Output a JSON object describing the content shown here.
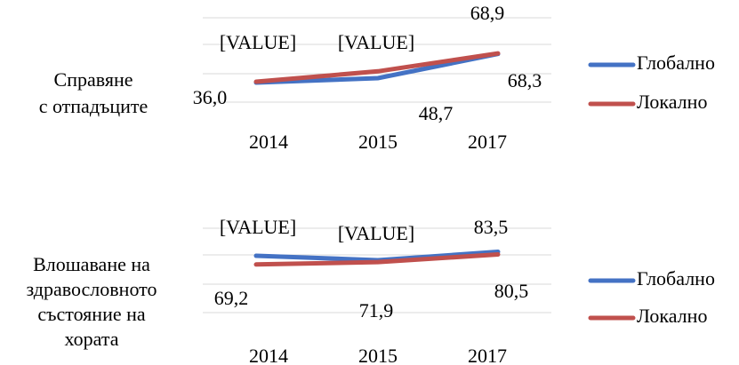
{
  "chart_data": [
    {
      "type": "line",
      "label": [
        "Справяне",
        "с отпадъците"
      ],
      "categories": [
        "2014",
        "2015",
        "2017"
      ],
      "series": [
        {
          "name": "Глобално",
          "color": "#4472c4",
          "values": [
            36.0,
            41,
            68.3
          ],
          "value_labels": [
            "36,0",
            "[VALUE]",
            "68,3"
          ]
        },
        {
          "name": "Локално",
          "color": "#c0504d",
          "values": [
            37,
            48.7,
            68.9
          ],
          "value_labels": [
            "[VALUE]",
            "48,7",
            "68,9"
          ]
        }
      ],
      "ylim": [
        30,
        80
      ]
    },
    {
      "type": "line",
      "label": [
        "Влошаване на",
        "здравословното",
        "състояние на",
        "хората"
      ],
      "categories": [
        "2014",
        "2015",
        "2017"
      ],
      "series": [
        {
          "name": "Глобално",
          "color": "#4472c4",
          "values": [
            79,
            74,
            83.5
          ],
          "value_labels": [
            "[VALUE]",
            "[VALUE]",
            "83,5"
          ]
        },
        {
          "name": "Локално",
          "color": "#c0504d",
          "values": [
            69.2,
            71.9,
            80.5
          ],
          "value_labels": [
            "69,2",
            "71,9",
            "80,5"
          ]
        }
      ],
      "ylim": [
        50,
        100
      ]
    }
  ]
}
